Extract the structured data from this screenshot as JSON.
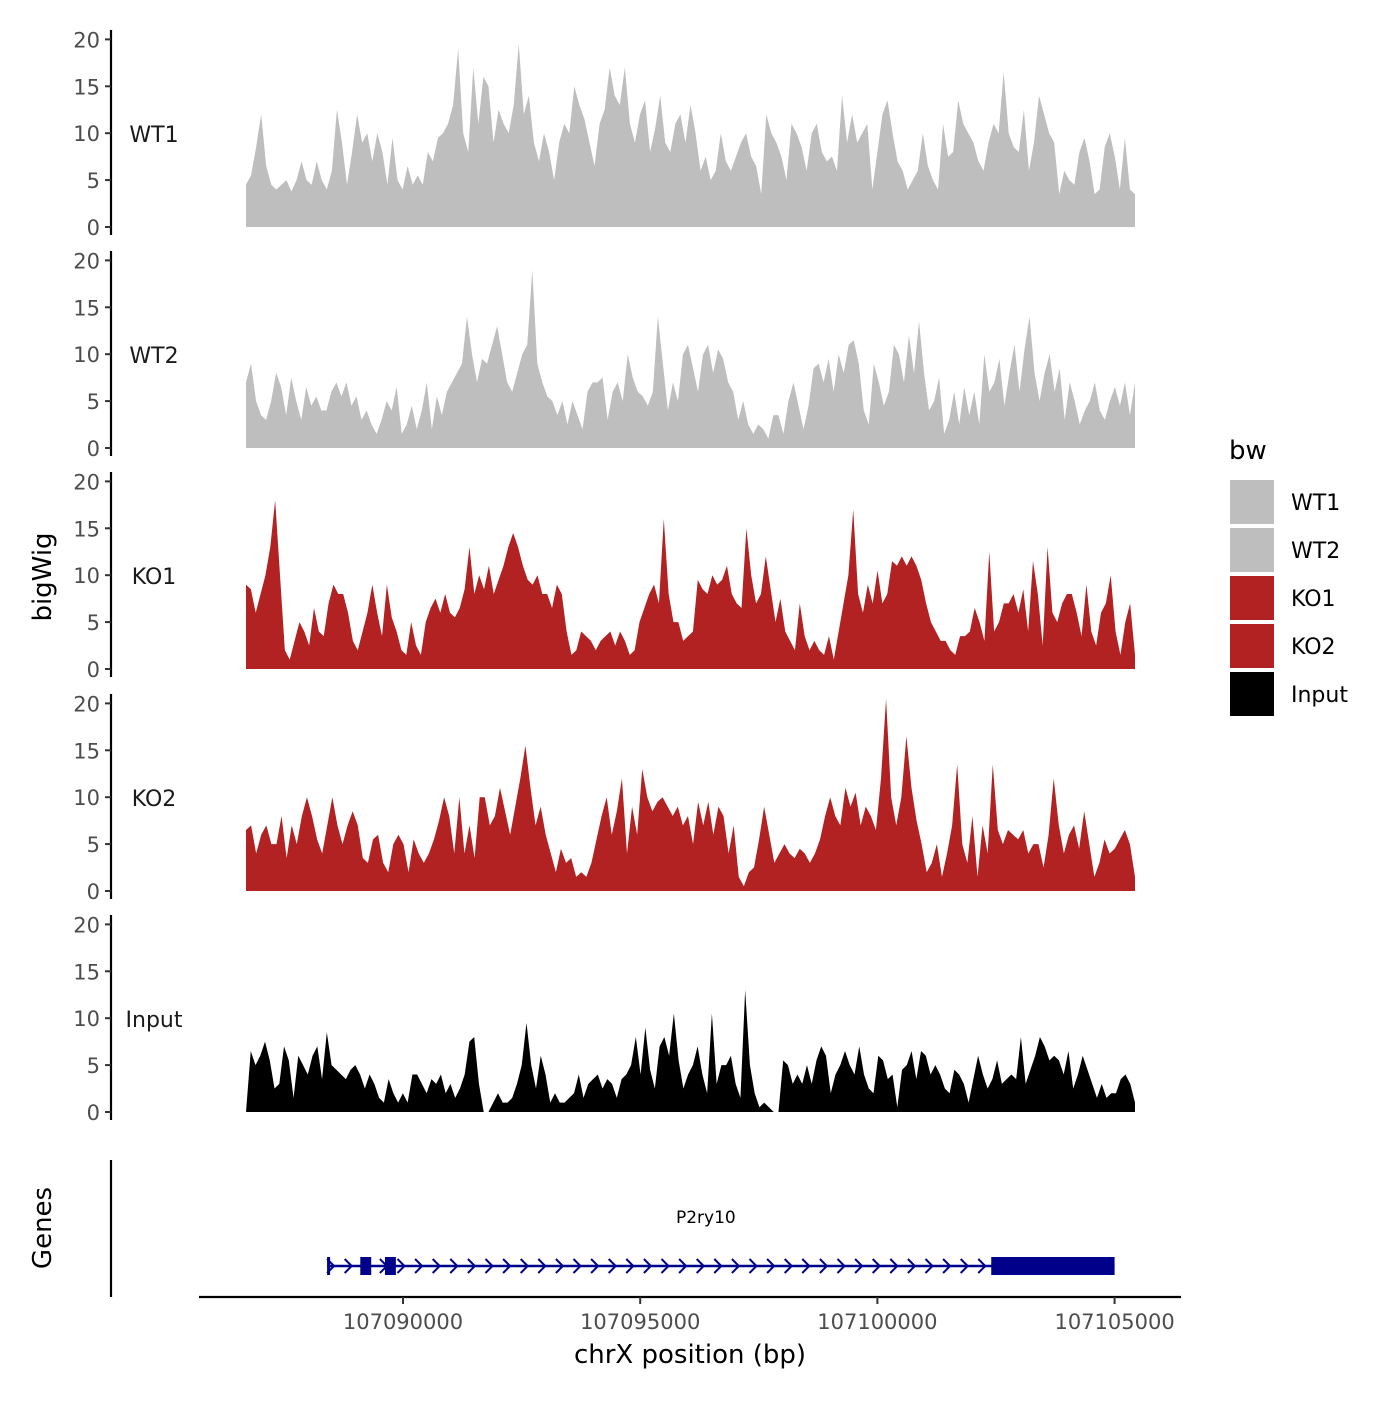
{
  "chart_data": {
    "type": "area",
    "ylabel": "bigWig",
    "xlabel": "chrX position (bp)",
    "ylim": [
      0,
      21
    ],
    "yticks": [
      0,
      5,
      10,
      15,
      20
    ],
    "xlim": [
      107085700,
      107106400
    ],
    "xticks": [
      107090000,
      107095000,
      107100000,
      107105000
    ],
    "xtick_labels": [
      "107090000",
      "107095000",
      "107100000",
      "107105000"
    ],
    "region": [
      107086500,
      107105000
    ],
    "legend": {
      "title": "bw",
      "position": "right",
      "entries": [
        {
          "label": "WT1",
          "color": "#bebebe"
        },
        {
          "label": "WT2",
          "color": "#bebebe"
        },
        {
          "label": "KO1",
          "color": "#b22222"
        },
        {
          "label": "KO2",
          "color": "#b22222"
        },
        {
          "label": "Input",
          "color": "#000000"
        }
      ]
    },
    "tracks": [
      {
        "name": "WT1",
        "color": "#bebebe",
        "values": [
          4.5,
          5.5,
          8.5,
          12,
          6.5,
          4.5,
          4,
          4.5,
          5,
          3.8,
          5,
          7,
          5,
          4.5,
          7,
          5,
          4,
          6,
          12.5,
          9,
          4.5,
          8,
          12,
          9,
          10,
          7,
          10,
          8,
          4.5,
          9.5,
          5,
          4,
          6.5,
          4.5,
          5.5,
          4.5,
          8,
          7,
          9.5,
          10,
          11,
          13,
          19,
          10,
          8,
          17,
          11,
          16,
          15,
          9,
          12.5,
          11,
          10,
          13,
          19.5,
          12,
          14,
          9,
          7,
          10,
          8,
          5,
          9,
          11,
          10,
          15,
          13,
          11.5,
          9,
          6.5,
          11,
          12.5,
          17,
          14,
          13,
          17,
          11,
          9,
          12,
          13.5,
          8,
          10.5,
          14,
          9,
          8,
          11,
          12,
          9,
          13,
          10,
          6,
          7.5,
          5,
          6,
          10,
          7,
          6,
          7.5,
          9,
          10,
          7.5,
          6.5,
          3.5,
          12,
          10,
          9,
          7.5,
          5,
          11,
          10,
          8.5,
          6,
          10,
          11,
          8,
          7,
          7.5,
          6,
          14,
          9,
          12,
          9,
          10,
          11,
          4,
          8,
          12,
          13.5,
          10,
          7,
          6,
          4,
          5,
          6,
          10,
          6.5,
          5,
          4,
          11,
          7.5,
          8,
          13.5,
          11,
          10,
          9,
          7,
          6,
          9,
          11,
          10,
          16.5,
          10,
          8.5,
          8,
          12.5,
          6,
          9,
          14,
          12,
          10,
          9,
          3.5,
          6,
          5,
          4.5,
          8,
          9.5,
          7,
          3.5,
          4,
          8.5,
          10,
          7.5,
          4,
          9.5,
          4,
          3.5
        ]
      },
      {
        "name": "WT2",
        "color": "#bebebe",
        "values": [
          7,
          9,
          5,
          3.5,
          3,
          5,
          8,
          6.5,
          3.5,
          7.5,
          5,
          3,
          6.5,
          4.5,
          5.5,
          4,
          4,
          6,
          7,
          5.5,
          7,
          4.5,
          5.5,
          3,
          4,
          2.5,
          1.5,
          3,
          5,
          4,
          6.5,
          1.5,
          2.5,
          4.5,
          2,
          4,
          7,
          2,
          5.5,
          3.5,
          6,
          7,
          8,
          9,
          14,
          10,
          7,
          9.5,
          9,
          11,
          13,
          10,
          7,
          6,
          8,
          10,
          11,
          19,
          9,
          7,
          5.5,
          5,
          3.5,
          5,
          2.5,
          5,
          3.5,
          2,
          6,
          7,
          7,
          7.5,
          3,
          6,
          7,
          5,
          10,
          7.5,
          6,
          5.5,
          4.5,
          6,
          14,
          9,
          4,
          7,
          5,
          10,
          11,
          8.5,
          6,
          10,
          11,
          8,
          10.5,
          9.5,
          7,
          6,
          3,
          5,
          2.5,
          1.5,
          2.5,
          2,
          1,
          3.5,
          3.5,
          1.5,
          5,
          7,
          4.5,
          2,
          4.5,
          8.5,
          9,
          7,
          9.5,
          6,
          10,
          8,
          11,
          11.5,
          9,
          4,
          2.5,
          9,
          7,
          4.5,
          6,
          11,
          10,
          7,
          12,
          8,
          13.5,
          8,
          4,
          5,
          7.5,
          1.5,
          3,
          6,
          2.5,
          6.5,
          3.5,
          6,
          2.5,
          10,
          6,
          7,
          9.5,
          4.5,
          8,
          11,
          6,
          10.5,
          14,
          8,
          5,
          8,
          10,
          6,
          8.5,
          3,
          7,
          5,
          2.5,
          4,
          5,
          7,
          4,
          3,
          5,
          6.5,
          4.5,
          7,
          3.5,
          7
        ]
      },
      {
        "name": "KO1",
        "color": "#b22222",
        "values": [
          9,
          8.5,
          6,
          8,
          10,
          13,
          18,
          10,
          2,
          1,
          3,
          5,
          4,
          2.5,
          6.5,
          4,
          3.5,
          7,
          9,
          8,
          8,
          6,
          3,
          2,
          4,
          6,
          9,
          6,
          3.5,
          9,
          5.5,
          4,
          2,
          1.5,
          5,
          2.5,
          1.5,
          5,
          6.5,
          7.5,
          6,
          8,
          6,
          5.5,
          6.5,
          8.5,
          13,
          8,
          10,
          8.5,
          11,
          8,
          9.5,
          11,
          13,
          14.5,
          13,
          11,
          9.5,
          9,
          10,
          8,
          8,
          6.5,
          9,
          8,
          4,
          1.5,
          2,
          4,
          3.5,
          3,
          2,
          3,
          3.5,
          4,
          2.5,
          4,
          3,
          1.5,
          2,
          5,
          6.5,
          8,
          9,
          7,
          16,
          8,
          5,
          5,
          3,
          3.5,
          4,
          9.5,
          8.5,
          8,
          10,
          9,
          9.5,
          11,
          8,
          7,
          6.5,
          15,
          10,
          7,
          8,
          12,
          8.5,
          5,
          7.5,
          4,
          3,
          2,
          7,
          3.5,
          2,
          3,
          2,
          1.5,
          3.5,
          1,
          4,
          7,
          10,
          17,
          8,
          6,
          9,
          7,
          10.5,
          7,
          8,
          11.5,
          11,
          12,
          11,
          12,
          11,
          9.5,
          7,
          5,
          4,
          3,
          3,
          2,
          1.5,
          3.5,
          3.5,
          4,
          6.5,
          5,
          3,
          12.5,
          4,
          5,
          7,
          7,
          8,
          6,
          8.5,
          4,
          11.5,
          8,
          2.5,
          13,
          6,
          5,
          7,
          8,
          8,
          6,
          3.5,
          9,
          4,
          2.5,
          6,
          7,
          10,
          4,
          1.5,
          5,
          7,
          1.5
        ]
      },
      {
        "name": "KO2",
        "color": "#b22222",
        "values": [
          6.5,
          7,
          4,
          6,
          7,
          5,
          5,
          8,
          3.5,
          7,
          5,
          8,
          10,
          8,
          5.5,
          4,
          7,
          10,
          7,
          5,
          7,
          8.5,
          7,
          3.5,
          3,
          5.5,
          6,
          3,
          2,
          5,
          6,
          5,
          2,
          5.5,
          4,
          3,
          4,
          5.5,
          7.5,
          10,
          8,
          4,
          10,
          4,
          7,
          3.5,
          10,
          10,
          7,
          8,
          11,
          8.5,
          6,
          9,
          12,
          15.5,
          11,
          7,
          9,
          6,
          4,
          2,
          4.5,
          3,
          3.5,
          1.5,
          2,
          1.5,
          3,
          5.5,
          8,
          10,
          6,
          8.5,
          12,
          4,
          9,
          6,
          13,
          10,
          8.5,
          9.5,
          10,
          9,
          8,
          9,
          7,
          8,
          5,
          9.5,
          7,
          9.5,
          6,
          9,
          8,
          4,
          7,
          1.5,
          0.5,
          2,
          2.5,
          5.5,
          9,
          6,
          3,
          4,
          5,
          4,
          3.5,
          4.5,
          4,
          3,
          4,
          5.5,
          8,
          10,
          8,
          7,
          11,
          9,
          10.5,
          7,
          9,
          8,
          6.5,
          12,
          20.5,
          10,
          7,
          10,
          16.5,
          11,
          7.5,
          5,
          2,
          3,
          5,
          1.5,
          4,
          7,
          13.5,
          5,
          3,
          8,
          1.5,
          7,
          4,
          13.5,
          6.5,
          5,
          6.5,
          6,
          5.5,
          6.5,
          4,
          5,
          5,
          2.5,
          6,
          12,
          7,
          4,
          6,
          7,
          4.5,
          8.5,
          5,
          1.5,
          3,
          5.5,
          4,
          4.5,
          5.5,
          6.5,
          5,
          1.5
        ]
      },
      {
        "name": "Input",
        "color": "#000000",
        "values": [
          0,
          6.5,
          5,
          6,
          7.5,
          5.5,
          2.5,
          3,
          7,
          5.5,
          1.5,
          6,
          5,
          4,
          6,
          7,
          3.5,
          8.5,
          5,
          4.5,
          4,
          3.5,
          4.5,
          5,
          4,
          2.5,
          4,
          3,
          1.5,
          1,
          3.5,
          2,
          1,
          2,
          1,
          4,
          4,
          3,
          2,
          3.5,
          3,
          4,
          2,
          3,
          1.5,
          2.5,
          4,
          7.5,
          8,
          3,
          0,
          0,
          1,
          2,
          1,
          1,
          1.5,
          3,
          5,
          9.5,
          5,
          2.5,
          6,
          4,
          1,
          2,
          1,
          1,
          1.5,
          2,
          4,
          1.5,
          3,
          3.5,
          4,
          2.5,
          3.5,
          3,
          1.5,
          3.5,
          4,
          5,
          8,
          4,
          9,
          4.5,
          2.5,
          7,
          8,
          6,
          10.5,
          5.5,
          2.5,
          4,
          5,
          7,
          4,
          2,
          10.5,
          3,
          5,
          5,
          6,
          3,
          1.5,
          13,
          5,
          2,
          0.5,
          1,
          0.5,
          0,
          0,
          5.5,
          5,
          3,
          4,
          3,
          5,
          3,
          5.5,
          7,
          6,
          2,
          4,
          5,
          6.5,
          5,
          4,
          7,
          4,
          2.5,
          2,
          6,
          5.5,
          3.5,
          4,
          0.5,
          4.5,
          5,
          6.5,
          3.5,
          6.5,
          6,
          4,
          5,
          4,
          2.5,
          2,
          4.5,
          4,
          3,
          1,
          3.5,
          6,
          4,
          2.5,
          3.5,
          5.5,
          3,
          3.5,
          4,
          3.5,
          8,
          3,
          4.5,
          6,
          8,
          7,
          5.5,
          6,
          5.5,
          4,
          6.5,
          2.5,
          4,
          6,
          4.5,
          3,
          1.5,
          3,
          1.5,
          2,
          2,
          3.5,
          4,
          3,
          1
        ]
      }
    ],
    "genes_track": {
      "label": "Genes",
      "color": "#00008b",
      "genes": [
        {
          "name": "P2ry10",
          "start": 107088400,
          "end": 107105000,
          "strand": "+",
          "exons": [
            [
              107088400,
              107088460
            ],
            [
              107089100,
              107089330
            ],
            [
              107089620,
              107089850
            ],
            [
              107102400,
              107105000
            ]
          ]
        }
      ]
    }
  }
}
